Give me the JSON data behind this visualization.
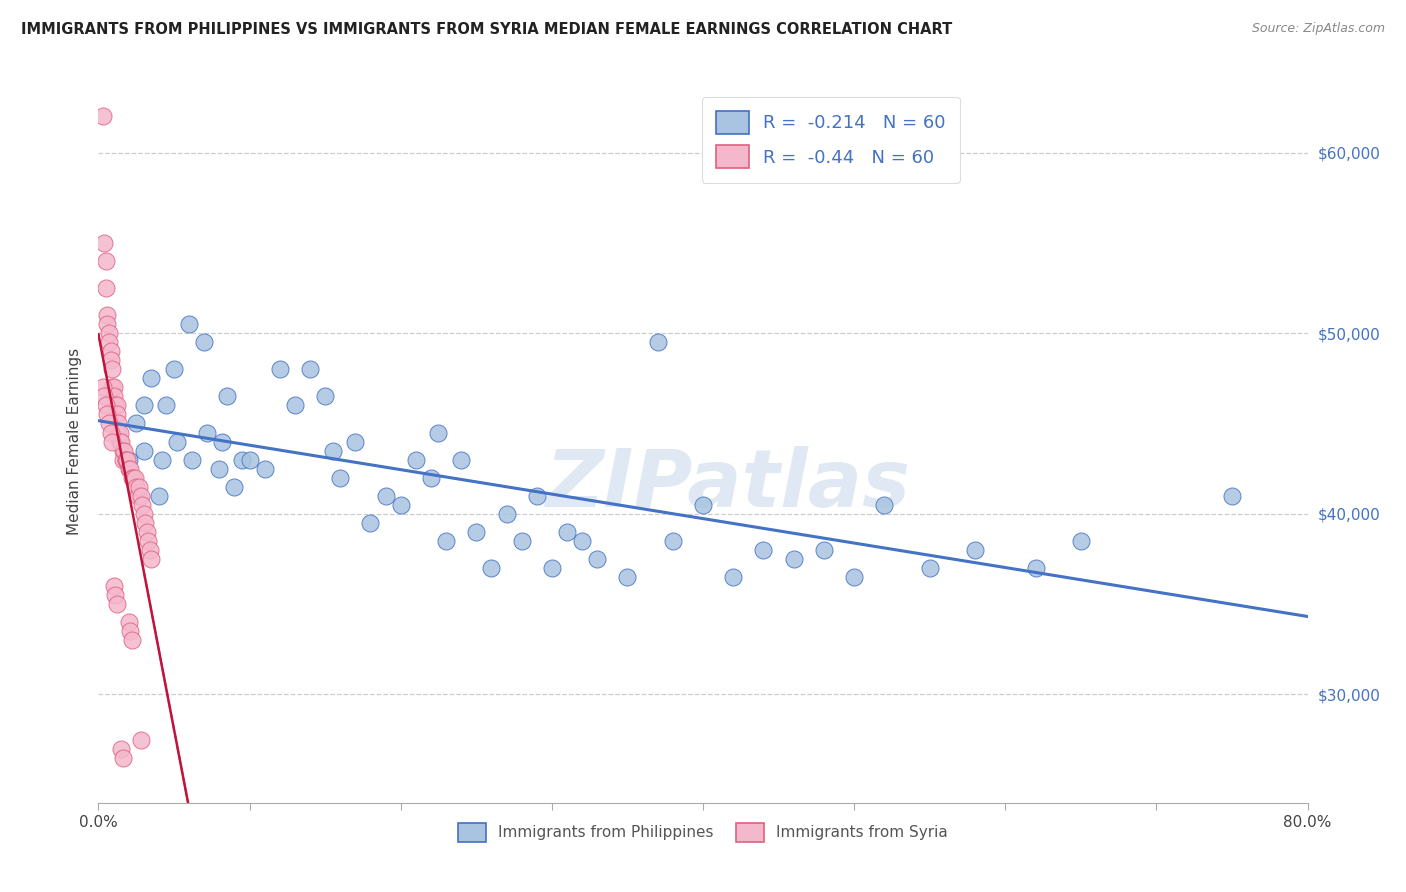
{
  "title": "IMMIGRANTS FROM PHILIPPINES VS IMMIGRANTS FROM SYRIA MEDIAN FEMALE EARNINGS CORRELATION CHART",
  "source": "Source: ZipAtlas.com",
  "ylabel": "Median Female Earnings",
  "x_min": 0.0,
  "x_max": 0.8,
  "y_min": 24000,
  "y_max": 64000,
  "xtick_vals": [
    0.0,
    0.1,
    0.2,
    0.3,
    0.4,
    0.5,
    0.6,
    0.7,
    0.8
  ],
  "xtick_labels": [
    "0.0%",
    "",
    "",
    "",
    "",
    "",
    "",
    "",
    "80.0%"
  ],
  "ytick_vals": [
    30000,
    40000,
    50000,
    60000
  ],
  "ytick_labels": [
    "$30,000",
    "$40,000",
    "$50,000",
    "$60,000"
  ],
  "color_philippines": "#a8c4e0",
  "color_syria": "#f4b8cc",
  "line_color_philippines": "#4472c4",
  "line_color_syria": "#c0143c",
  "R_philippines": -0.214,
  "N_philippines": 60,
  "R_syria": -0.44,
  "N_syria": 60,
  "watermark": "ZIPatlas",
  "legend_labels": [
    "Immigrants from Philippines",
    "Immigrants from Syria"
  ],
  "philippines_x": [
    0.02,
    0.025,
    0.03,
    0.03,
    0.035,
    0.04,
    0.042,
    0.045,
    0.05,
    0.052,
    0.06,
    0.062,
    0.07,
    0.072,
    0.08,
    0.082,
    0.085,
    0.09,
    0.095,
    0.1,
    0.11,
    0.12,
    0.13,
    0.14,
    0.15,
    0.155,
    0.16,
    0.17,
    0.18,
    0.19,
    0.2,
    0.21,
    0.22,
    0.225,
    0.23,
    0.24,
    0.25,
    0.26,
    0.27,
    0.28,
    0.29,
    0.3,
    0.31,
    0.32,
    0.33,
    0.35,
    0.37,
    0.38,
    0.4,
    0.42,
    0.44,
    0.46,
    0.48,
    0.5,
    0.52,
    0.55,
    0.58,
    0.62,
    0.65,
    0.75
  ],
  "philippines_y": [
    43000,
    45000,
    43500,
    46000,
    47500,
    41000,
    43000,
    46000,
    48000,
    44000,
    50500,
    43000,
    49500,
    44500,
    42500,
    44000,
    46500,
    41500,
    43000,
    43000,
    42500,
    48000,
    46000,
    48000,
    46500,
    43500,
    42000,
    44000,
    39500,
    41000,
    40500,
    43000,
    42000,
    44500,
    38500,
    43000,
    39000,
    37000,
    40000,
    38500,
    41000,
    37000,
    39000,
    38500,
    37500,
    36500,
    49500,
    38500,
    40500,
    36500,
    38000,
    37500,
    38000,
    36500,
    40500,
    37000,
    38000,
    37000,
    38500,
    41000
  ],
  "syria_x": [
    0.003,
    0.004,
    0.005,
    0.005,
    0.006,
    0.006,
    0.007,
    0.007,
    0.008,
    0.008,
    0.009,
    0.009,
    0.01,
    0.01,
    0.011,
    0.012,
    0.012,
    0.013,
    0.013,
    0.014,
    0.014,
    0.015,
    0.016,
    0.016,
    0.017,
    0.018,
    0.018,
    0.019,
    0.02,
    0.021,
    0.022,
    0.023,
    0.024,
    0.025,
    0.026,
    0.027,
    0.028,
    0.029,
    0.03,
    0.031,
    0.032,
    0.033,
    0.034,
    0.035,
    0.02,
    0.021,
    0.022,
    0.01,
    0.011,
    0.012,
    0.003,
    0.004,
    0.005,
    0.006,
    0.007,
    0.008,
    0.009,
    0.015,
    0.016,
    0.028
  ],
  "syria_y": [
    62000,
    55000,
    54000,
    52500,
    51000,
    50500,
    50000,
    49500,
    49000,
    48500,
    48000,
    47000,
    47000,
    46500,
    46000,
    46000,
    45500,
    45000,
    44500,
    44500,
    44000,
    44000,
    43500,
    43000,
    43500,
    43000,
    43000,
    43000,
    42500,
    42500,
    42000,
    42000,
    42000,
    41500,
    41000,
    41500,
    41000,
    40500,
    40000,
    39500,
    39000,
    38500,
    38000,
    37500,
    34000,
    33500,
    33000,
    36000,
    35500,
    35000,
    47000,
    46500,
    46000,
    45500,
    45000,
    44500,
    44000,
    27000,
    26500,
    27500
  ]
}
